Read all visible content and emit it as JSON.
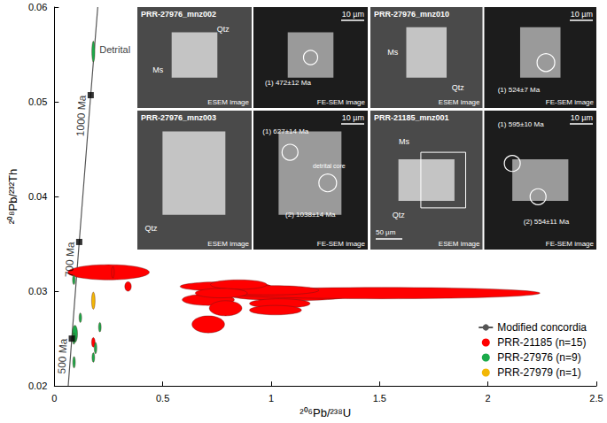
{
  "chart_data": {
    "type": "scatter",
    "xlabel": "²⁰⁶Pb/²³⁸U",
    "ylabel": "²⁰⁸Pb/²³²Th",
    "xlim": [
      0,
      2.5
    ],
    "xticks": [
      0,
      0.5,
      1,
      1.5,
      2,
      2.5
    ],
    "ylim": [
      0.02,
      0.06
    ],
    "yticks": [
      0.02,
      0.03,
      0.04,
      0.05,
      0.06
    ],
    "grid": false,
    "legend": "lower right",
    "series": [
      {
        "name": "Modified concordia",
        "type": "line",
        "color": "#555555",
        "x": [
          0.0641,
          0.0806,
          0.1148,
          0.1678,
          0.2003
        ],
        "y": [
          0.02,
          0.025,
          0.0352,
          0.0507,
          0.06
        ]
      },
      {
        "name": "PRR-21185 (n=15)",
        "type": "scatter",
        "marker": "ellipse",
        "color": "#ff0000",
        "x": [
          0.25,
          0.27,
          0.34,
          0.18,
          0.79,
          0.71,
          0.79,
          0.71,
          1.09,
          1.51,
          0.99,
          1.04,
          1.02,
          0.85,
          0.77
        ],
        "y": [
          0.032,
          0.032,
          0.0305,
          0.0246,
          0.0305,
          0.0291,
          0.0282,
          0.0265,
          0.0296,
          0.0298,
          0.0301,
          0.0287,
          0.028,
          0.0307,
          0.0298
        ],
        "x_err": [
          0.188,
          0.006,
          0.015,
          0.008,
          0.21,
          0.12,
          0.075,
          0.075,
          0.29,
          0.73,
          0.23,
          0.14,
          0.12,
          0.13,
          0.12
        ],
        "y_err": [
          0.0008,
          0.0006,
          0.0005,
          0.0005,
          0.0005,
          0.0006,
          0.0008,
          0.0009,
          0.0006,
          0.0006,
          0.0005,
          0.0005,
          0.0005,
          0.0005,
          0.0005
        ]
      },
      {
        "name": "PRR-27976 (n=9)",
        "type": "scatter",
        "marker": "ellipse",
        "color": "#1aaa4a",
        "x": [
          0.18,
          0.09,
          0.12,
          0.095,
          0.09,
          0.21,
          0.19,
          0.18,
          0.091
        ],
        "y": [
          0.0553,
          0.0312,
          0.0272,
          0.0255,
          0.025,
          0.0262,
          0.024,
          0.023,
          0.0225
        ],
        "x_err": [
          0.007,
          0.006,
          0.006,
          0.012,
          0.006,
          0.006,
          0.006,
          0.006,
          0.006
        ],
        "y_err": [
          0.0011,
          0.0005,
          0.0005,
          0.0009,
          0.0006,
          0.0005,
          0.0006,
          0.0005,
          0.0006
        ]
      },
      {
        "name": "PRR-27979 (n=1)",
        "type": "scatter",
        "marker": "ellipse",
        "color": "#f2b705",
        "x": [
          0.18
        ],
        "y": [
          0.029
        ],
        "x_err": [
          0.008
        ],
        "y_err": [
          0.0009
        ]
      }
    ],
    "concordia_ages": {
      "labels": [
        "500 Ma",
        "700 Ma",
        "1000 Ma"
      ],
      "x": [
        0.0806,
        0.1148,
        0.1678
      ],
      "y": [
        0.025,
        0.0352,
        0.0507
      ],
      "color": "#000000",
      "marker": "square"
    },
    "annotations": [
      {
        "text": "Detrital",
        "x": 0.2,
        "y": 0.0555
      }
    ],
    "insets": [
      {
        "title": "PRR-27976_mnz002",
        "scales": [
          "10 µm"
        ],
        "images": [
          "ESEM image",
          "FE-SEM image"
        ],
        "minerals": [
          "Ms",
          "Qtz"
        ],
        "spots": [
          "(1) 472±12 Ma"
        ],
        "notes": []
      },
      {
        "title": "PRR-27976_mnz010",
        "scales": [
          "10 µm"
        ],
        "images": [
          "ESEM image",
          "FE-SEM image"
        ],
        "minerals": [
          "Ms",
          "Qtz"
        ],
        "spots": [
          "(1) 524±7 Ma"
        ],
        "notes": []
      },
      {
        "title": "PRR-27976_mnz003",
        "scales": [
          "10 µm"
        ],
        "images": [
          "ESEM image",
          "FE-SEM image"
        ],
        "minerals": [
          "Qtz"
        ],
        "spots": [
          "(1) 627±14 Ma",
          "(2) 1038±14 Ma"
        ],
        "notes": [
          "detrital core"
        ]
      },
      {
        "title": "PRR-21185_mnz001",
        "scales": [
          "50 µm",
          "10 µm"
        ],
        "images": [
          "ESEM image",
          "FE-SEM image"
        ],
        "minerals": [
          "Ms",
          "Qtz"
        ],
        "spots": [
          "(1) 595±10 Ma",
          "(2) 554±11 Ma"
        ],
        "notes": []
      }
    ]
  }
}
